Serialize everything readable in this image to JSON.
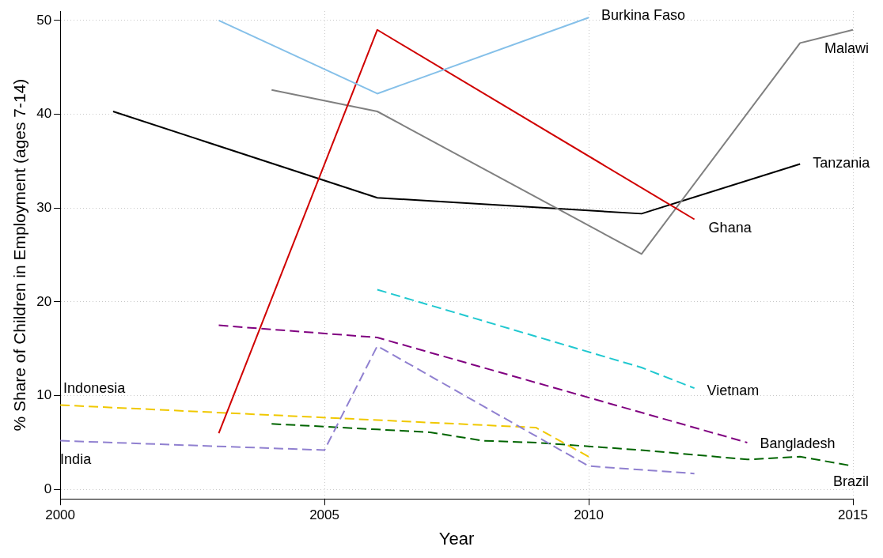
{
  "chart_data": {
    "type": "line",
    "xlabel": "Year",
    "ylabel": "% Share of Children in Employment (ages 7-14)",
    "xlim": [
      2000,
      2015
    ],
    "xticks": [
      2000,
      2005,
      2010,
      2015
    ],
    "ylim": [
      -1,
      51
    ],
    "yticks": [
      0,
      10,
      20,
      30,
      40,
      50
    ],
    "grid": true,
    "legend": false,
    "marker": "none",
    "series": [
      {
        "name": "Burkina Faso",
        "color": "#85c0e9",
        "line_style": "solid",
        "x": [
          2003,
          2006,
          2010
        ],
        "values": [
          50,
          42.2,
          50.3
        ]
      },
      {
        "name": "Ghana",
        "color": "#d00000",
        "line_style": "solid",
        "x": [
          2003,
          2006,
          2012
        ],
        "values": [
          6.0,
          49.0,
          28.8
        ]
      },
      {
        "name": "Malawi",
        "color": "#808080",
        "line_style": "solid",
        "x": [
          2004,
          2006,
          2011,
          2014,
          2015
        ],
        "values": [
          42.6,
          40.3,
          25.1,
          47.6,
          49.0
        ]
      },
      {
        "name": "Tanzania",
        "color": "#000000",
        "line_style": "solid",
        "x": [
          2001,
          2006,
          2011,
          2014
        ],
        "values": [
          40.3,
          31.1,
          29.4,
          34.7
        ]
      },
      {
        "name": "Vietnam",
        "color": "#20c8d0",
        "line_style": "dashed",
        "x": [
          2006,
          2011,
          2012
        ],
        "values": [
          21.3,
          13.0,
          10.8
        ]
      },
      {
        "name": "Bangladesh",
        "color": "#800080",
        "line_style": "dashed",
        "x": [
          2003,
          2006,
          2013
        ],
        "values": [
          17.5,
          16.2,
          5.0
        ]
      },
      {
        "name": "India",
        "color": "#9080d0",
        "line_style": "dashed",
        "x": [
          2000,
          2005,
          2006,
          2010,
          2012
        ],
        "values": [
          5.2,
          4.2,
          15.3,
          2.5,
          1.7
        ]
      },
      {
        "name": "Indonesia",
        "color": "#f0c800",
        "line_style": "dashed",
        "x": [
          2000,
          2009,
          2010
        ],
        "values": [
          9.0,
          6.6,
          3.5
        ]
      },
      {
        "name": "Brazil",
        "color": "#006400",
        "line_style": "dashed",
        "x": [
          2004,
          2006,
          2007,
          2008,
          2009,
          2010,
          2011,
          2012,
          2013,
          2014,
          2015
        ],
        "values": [
          7.0,
          6.4,
          6.1,
          5.2,
          5.0,
          4.6,
          4.2,
          3.7,
          3.2,
          3.5,
          2.5
        ]
      }
    ]
  }
}
